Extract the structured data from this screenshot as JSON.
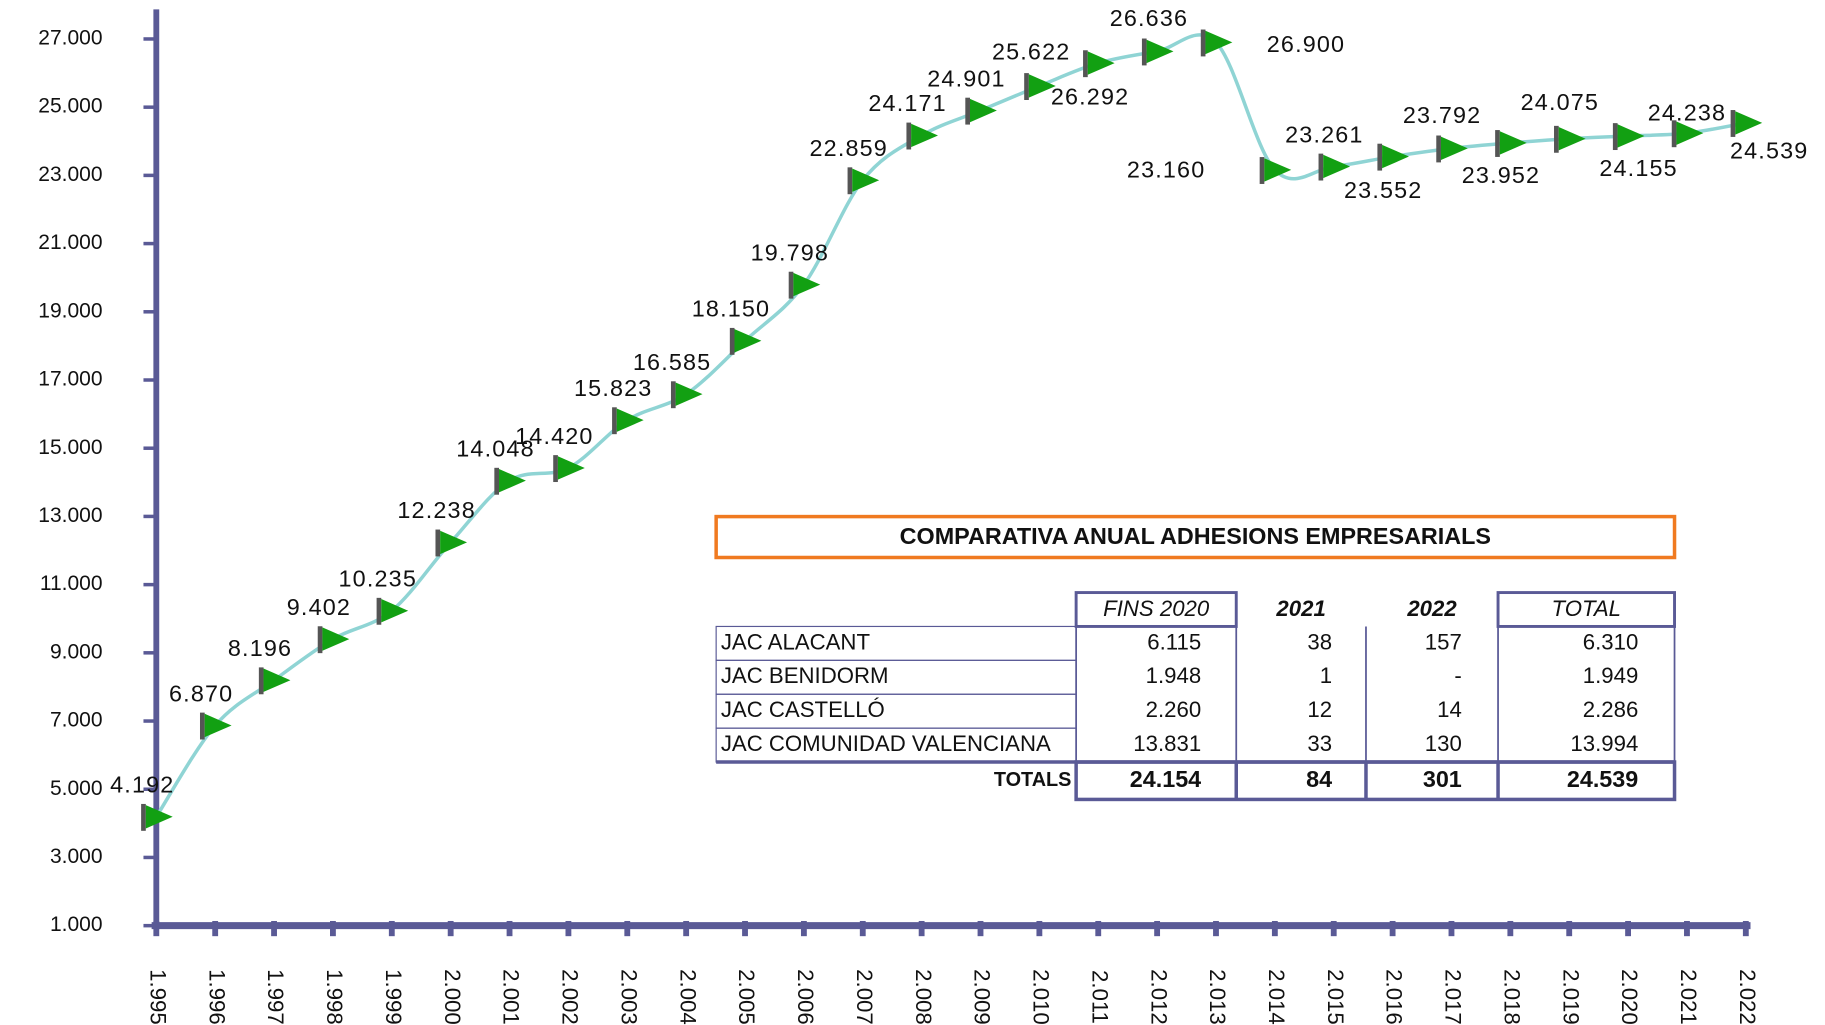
{
  "chart_data": {
    "type": "line",
    "categories": [
      "1.995",
      "1.996",
      "1.997",
      "1.998",
      "1.999",
      "2.000",
      "2.001",
      "2.002",
      "2.003",
      "2.004",
      "2.005",
      "2.006",
      "2.007",
      "2.008",
      "2.009",
      "2.010",
      "2.011",
      "2.012",
      "2.013",
      "2.014",
      "2.015",
      "2.016",
      "2.017",
      "2.018",
      "2.019",
      "2.020",
      "2.021",
      "2.022"
    ],
    "values": [
      4192,
      6870,
      8196,
      9402,
      10235,
      12238,
      14048,
      14420,
      15823,
      16585,
      18150,
      19798,
      22859,
      24171,
      24901,
      25622,
      26292,
      26636,
      26900,
      23160,
      23261,
      23552,
      23792,
      23952,
      24075,
      24155,
      24238,
      24539
    ],
    "value_labels": [
      "4.192",
      "6.870",
      "8.196",
      "9.402",
      "10.235",
      "12.238",
      "14.048",
      "14.420",
      "15.823",
      "16.585",
      "18.150",
      "19.798",
      "22.859",
      "24.171",
      "24.901",
      "25.622",
      "26.292",
      "26.636",
      "26.900",
      "23.160",
      "23.261",
      "23.552",
      "23.792",
      "23.952",
      "24.075",
      "24.155",
      "24.238",
      "24.539"
    ],
    "color": "#8fd4d4",
    "marker_color": "#12a012",
    "axis_color": "#5a5a96",
    "ylim": [
      1000,
      27800
    ],
    "yticks": [
      {
        "value": 1000,
        "label": "1.000"
      },
      {
        "value": 3000,
        "label": "3.000"
      },
      {
        "value": 5000,
        "label": "5.000"
      },
      {
        "value": 7000,
        "label": "7.000"
      },
      {
        "value": 9000,
        "label": "9.000"
      },
      {
        "value": 11000,
        "label": "11.000"
      },
      {
        "value": 13000,
        "label": "13.000"
      },
      {
        "value": 15000,
        "label": "15.000"
      },
      {
        "value": 17000,
        "label": "17.000"
      },
      {
        "value": 19000,
        "label": "19.000"
      },
      {
        "value": 21000,
        "label": "21.000"
      },
      {
        "value": 23000,
        "label": "23.000"
      },
      {
        "value": 25000,
        "label": "25.000"
      },
      {
        "value": 27000,
        "label": "27.000"
      }
    ]
  },
  "table": {
    "title": "COMPARATIVA ANUAL ADHESIONS EMPRESARIALS",
    "header": [
      "FINS 2020",
      "2021",
      "2022",
      "TOTAL"
    ],
    "rows": [
      [
        "JAC ALACANT",
        "6.115",
        "38",
        "157",
        "6.310"
      ],
      [
        "JAC BENIDORM",
        "1.948",
        "1",
        "-",
        "1.949"
      ],
      [
        "JAC CASTELLÓ",
        "2.260",
        "12",
        "14",
        "2.286"
      ],
      [
        "JAC COMUNIDAD VALENCIANA",
        "13.831",
        "33",
        "130",
        "13.994"
      ]
    ],
    "totals": [
      "TOTALS",
      "24.154",
      "84",
      "301",
      "24.539"
    ]
  }
}
